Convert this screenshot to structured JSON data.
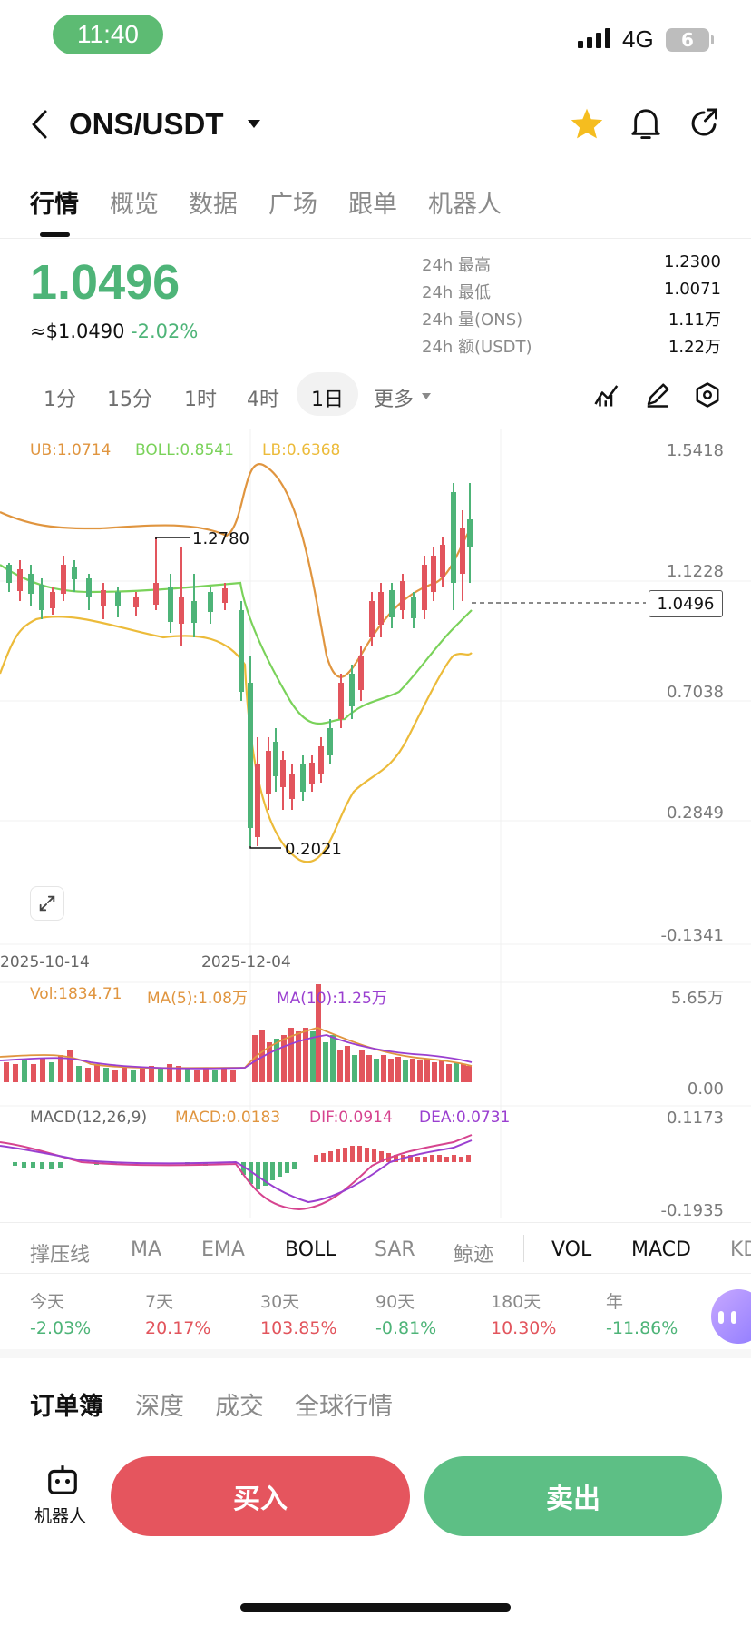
{
  "status_bar": {
    "time": "11:40",
    "network": "4G",
    "battery": "6"
  },
  "header": {
    "pair": "ONS/USDT"
  },
  "tabs": [
    "行情",
    "概览",
    "数据",
    "广场",
    "跟单",
    "机器人"
  ],
  "price": {
    "last": "1.0496",
    "usd": "≈$1.0490",
    "change": "-2.02%"
  },
  "stats": [
    {
      "label": "24h  最高",
      "value": "1.2300"
    },
    {
      "label": "24h  最低",
      "value": "1.0071"
    },
    {
      "label": "24h  量(ONS)",
      "value": "1.11万"
    },
    {
      "label": "24h  额(USDT)",
      "value": "1.22万"
    }
  ],
  "intervals": [
    "1分",
    "15分",
    "1时",
    "4时",
    "1日",
    "更多"
  ],
  "chart_data": {
    "type": "line",
    "boll_legend": {
      "ub": "UB:1.0714",
      "boll": "BOLL:0.8541",
      "lb": "LB:0.6368"
    },
    "price_axis": [
      "1.5418",
      "1.1228",
      "0.7038",
      "0.2849",
      "-0.1341"
    ],
    "current_price_label": "1.0496",
    "annotations": {
      "high": "1.2780",
      "low": "0.2021"
    },
    "dates": [
      "2025-10-14",
      "2025-12-04"
    ],
    "volume_legend": {
      "vol": "Vol:1834.71",
      "ma5": "MA(5):1.08万",
      "ma10": "MA(10):1.25万"
    },
    "volume_axis": [
      "5.65万",
      "0.00"
    ],
    "macd_legend": {
      "params": "MACD(12,26,9)",
      "macd": "MACD:0.0183",
      "dif": "DIF:0.0914",
      "dea": "DEA:0.0731"
    },
    "macd_axis": [
      "0.1173",
      "-0.1935"
    ],
    "colors": {
      "up": "#e2555d",
      "down": "#4eb478",
      "ub": "#e0953f",
      "lb": "#ecbb3a",
      "mid": "#7ad25a",
      "dif": "#d6448f",
      "dea": "#9a3fd0"
    }
  },
  "indicators": [
    "撑压线",
    "MA",
    "EMA",
    "BOLL",
    "SAR",
    "鲸迹",
    "VOL",
    "MACD",
    "KD"
  ],
  "performance": [
    {
      "label": "今天",
      "value": "-2.03%"
    },
    {
      "label": "7天",
      "value": "20.17%"
    },
    {
      "label": "30天",
      "value": "103.85%"
    },
    {
      "label": "90天",
      "value": "-0.81%"
    },
    {
      "label": "180天",
      "value": "10.30%"
    },
    {
      "label": "年",
      "value": "-11.86%"
    }
  ],
  "book_tabs": [
    "订单簿",
    "深度",
    "成交",
    "全球行情"
  ],
  "actions": {
    "robot": "机器人",
    "buy": "买入",
    "sell": "卖出"
  }
}
